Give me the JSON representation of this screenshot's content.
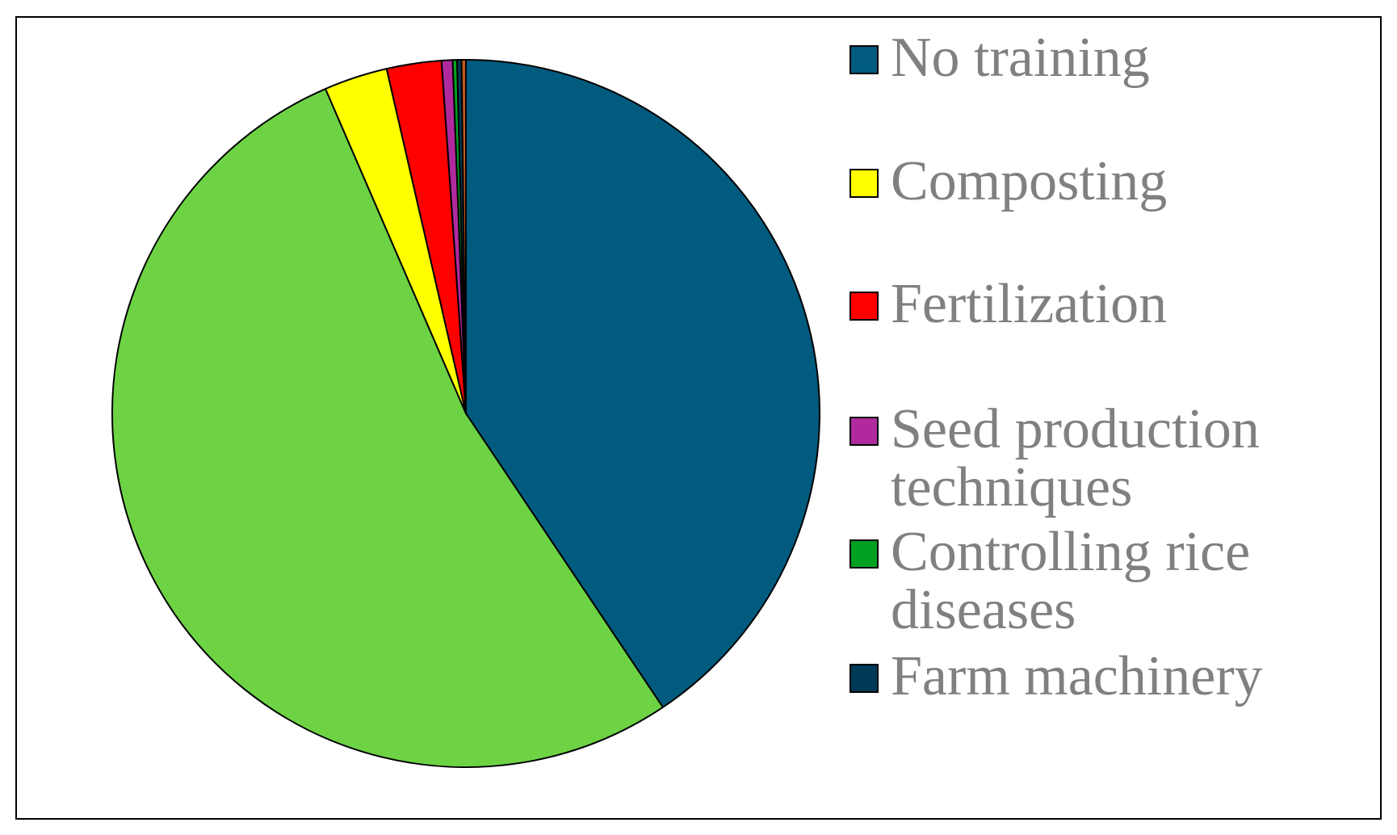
{
  "chart_data": {
    "type": "pie",
    "title": "",
    "legend_position": "right",
    "slices": [
      {
        "label": "No training",
        "value": 40.6,
        "color": "#005b7f"
      },
      {
        "label": "",
        "value": 52.9,
        "color": "#6dd345"
      },
      {
        "label": "Composting",
        "value": 2.9,
        "color": "#ffff00"
      },
      {
        "label": "Fertilization",
        "value": 2.5,
        "color": "#ff0000"
      },
      {
        "label": "Seed production techniques",
        "value": 0.5,
        "color": "#b02a9e"
      },
      {
        "label": "Controlling rice diseases",
        "value": 0.2,
        "color": "#00a020"
      },
      {
        "label": "Farm machinery",
        "value": 0.2,
        "color": "#003a57"
      },
      {
        "label": "",
        "value": 0.2,
        "color": "#c05a1a"
      }
    ],
    "legend": [
      {
        "label": "No training",
        "color": "#005b7f"
      },
      {
        "label": "Composting",
        "color": "#ffff00"
      },
      {
        "label": "Fertilization",
        "color": "#ff0000"
      },
      {
        "label": "Seed production techniques",
        "color": "#b02a9e"
      },
      {
        "label": "Controlling rice diseases",
        "color": "#00a020"
      },
      {
        "label": "Farm machinery",
        "color": "#003a57"
      }
    ]
  }
}
